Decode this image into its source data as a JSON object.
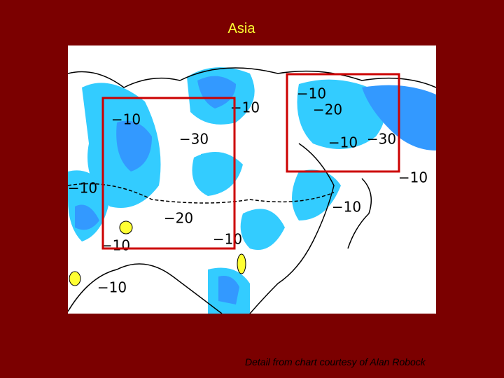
{
  "header": {
    "title": "Asia"
  },
  "map": {
    "contour_labels": [
      "−10",
      "−10",
      "−10",
      "−20",
      "−30",
      "−10",
      "−30",
      "−10",
      "−10",
      "−20",
      "−10",
      "−10",
      "−10",
      "−10"
    ]
  },
  "footer": {
    "caption": "Detail from chart courtesy of Alan Robock"
  }
}
